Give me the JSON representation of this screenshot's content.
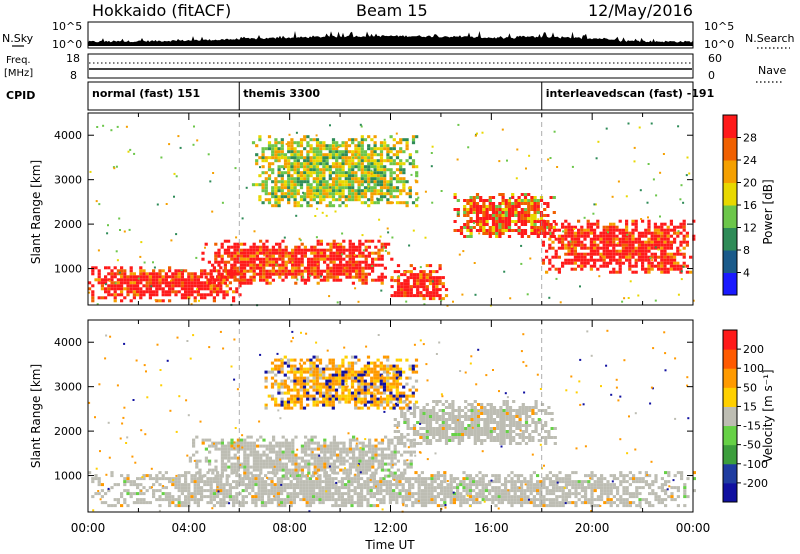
{
  "header": {
    "title": "Hokkaido (fitACF)",
    "beam": "Beam 15",
    "date": "12/May/2016"
  },
  "strips": {
    "nsky_label": "N.Sky",
    "nsky_top": "10^5",
    "nsky_bottom": "10^0",
    "nsearch_label": "N.Search",
    "nsearch_top": "10^5",
    "nsearch_bottom": "10^0",
    "freq_label": "Freq.",
    "freq_unit": "[MHz]",
    "freq_top": "18",
    "freq_bottom": "8",
    "nave_label": "Nave",
    "nave_top": "60",
    "nave_bottom": "0",
    "cpid_label": "CPID",
    "cpid_segments": [
      {
        "label": "normal (fast) 151",
        "start_hour": 0
      },
      {
        "label": "themis 3300",
        "start_hour": 6
      },
      {
        "label": "interleavedscan (fast) -191",
        "start_hour": 18
      }
    ]
  },
  "colors": {
    "power": [
      "#1a1aff",
      "#1a5a8a",
      "#2e8b57",
      "#6cc64a",
      "#e8d800",
      "#f5a000",
      "#f06000",
      "#ff1a1a"
    ],
    "velocity": [
      "#ff1a1a",
      "#ff5a00",
      "#ff9a00",
      "#ffd000",
      "#bdbdb3",
      "#66d146",
      "#3c9e3c",
      "#1f3ca0",
      "#1010a0"
    ],
    "gray_scatter": "#bdbdb3"
  },
  "chart_data": [
    {
      "type": "heatmap",
      "panel": "power",
      "title": "Beam 15",
      "xlabel": "Time UT",
      "ylabel": "Slant Range [km]",
      "xlim_hours": [
        0,
        24
      ],
      "ylim_km": [
        180,
        4500
      ],
      "x_ticks": [
        "00:00",
        "04:00",
        "08:00",
        "12:00",
        "16:00",
        "20:00",
        "00:00"
      ],
      "y_ticks": [
        1000,
        2000,
        3000,
        4000
      ],
      "colorbar": {
        "label": "Power [dB]",
        "ticks": [
          "4",
          "8",
          "12",
          "16",
          "20",
          "24",
          "28"
        ],
        "range": [
          0,
          30
        ]
      },
      "regions": [
        {
          "t0": 0.0,
          "t1": 6.0,
          "r0": 300,
          "r1": 1050,
          "level": "strong"
        },
        {
          "t0": 4.5,
          "t1": 12.0,
          "r0": 700,
          "r1": 1650,
          "level": "strong"
        },
        {
          "t0": 12.0,
          "t1": 14.2,
          "r0": 300,
          "r1": 1100,
          "level": "strong"
        },
        {
          "t0": 14.5,
          "t1": 18.5,
          "r0": 1700,
          "r1": 2700,
          "level": "medium"
        },
        {
          "t0": 18.0,
          "t1": 24.0,
          "r0": 900,
          "r1": 2100,
          "level": "strong"
        },
        {
          "t0": 6.5,
          "t1": 13.0,
          "r0": 2400,
          "r1": 4000,
          "level": "weak"
        }
      ]
    },
    {
      "type": "heatmap",
      "panel": "velocity",
      "xlabel": "Time UT",
      "ylabel": "Slant Range [km]",
      "xlim_hours": [
        0,
        24
      ],
      "ylim_km": [
        180,
        4500
      ],
      "x_ticks": [
        "00:00",
        "04:00",
        "08:00",
        "12:00",
        "16:00",
        "20:00",
        "00:00"
      ],
      "y_ticks": [
        1000,
        2000,
        3000,
        4000
      ],
      "colorbar": {
        "label": "Velocity [m s⁻¹]",
        "ticks": [
          "200",
          "100",
          "50",
          "15",
          "-15",
          "-50",
          "-100",
          "-200"
        ],
        "range": [
          -200,
          200
        ]
      },
      "regions": [
        {
          "t0": 0.0,
          "t1": 24.0,
          "r0": 300,
          "r1": 1100,
          "level": "gray"
        },
        {
          "t0": 4.0,
          "t1": 13.0,
          "r0": 1000,
          "r1": 1900,
          "level": "gray"
        },
        {
          "t0": 12.0,
          "t1": 18.5,
          "r0": 1700,
          "r1": 2700,
          "level": "gray"
        },
        {
          "t0": 7.0,
          "t1": 13.0,
          "r0": 2500,
          "r1": 3700,
          "level": "mixed"
        }
      ]
    }
  ]
}
